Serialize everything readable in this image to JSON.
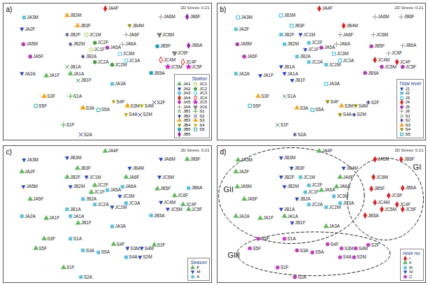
{
  "chart_data": [
    {
      "type": "scatter",
      "title": "a)",
      "subtitle": "2D Stress: 0.21",
      "legend_title": "Station",
      "legend": "lower right",
      "tick_labels": false,
      "xlim": [
        0,
        100
      ],
      "ylim": [
        0,
        100
      ],
      "series": [
        {
          "name": "JA1",
          "color": "#5cb85c",
          "marker": "triangle"
        },
        {
          "name": "JA2",
          "color": "#1f3fbf",
          "marker": "triangle-down"
        },
        {
          "name": "JA3",
          "color": "#5bc0de",
          "marker": "square"
        },
        {
          "name": "JA4",
          "color": "#e31a1c",
          "marker": "diamond"
        },
        {
          "name": "JA5",
          "color": "#b03cb0",
          "marker": "circle"
        },
        {
          "name": "JA6",
          "color": "#999999",
          "marker": "plus"
        },
        {
          "name": "JB1",
          "color": "#2e8b57",
          "marker": "times"
        },
        {
          "name": "JB2",
          "color": "#1a237e",
          "marker": "asterisk"
        },
        {
          "name": "JB3",
          "color": "#f5a623",
          "marker": "triangle"
        },
        {
          "name": "JB4",
          "color": "#8a8a00",
          "marker": "triangle-down"
        },
        {
          "name": "JB5",
          "color": "#17a2b8",
          "marker": "square"
        },
        {
          "name": "JB6",
          "color": "#8e24aa",
          "marker": "diamond"
        },
        {
          "name": "JC1",
          "color": "#9acd32",
          "marker": "open-circle"
        },
        {
          "name": "JC2",
          "color": "#43a047",
          "marker": "circle"
        },
        {
          "name": "JC3",
          "color": "#4fc3f7",
          "marker": "open-square"
        },
        {
          "name": "JC4",
          "color": "#e31a1c",
          "marker": "open-diamond"
        },
        {
          "name": "JC5",
          "color": "#c51bc5",
          "marker": "star"
        },
        {
          "name": "JC6",
          "color": "#777777",
          "marker": "wye"
        },
        {
          "name": "S1",
          "color": "#3cb043",
          "marker": "plus"
        },
        {
          "name": "S2",
          "color": "#283593",
          "marker": "times"
        },
        {
          "name": "S3",
          "color": "#ffa000",
          "marker": "triangle"
        },
        {
          "name": "S4",
          "color": "#b5b500",
          "marker": "triangle-down"
        },
        {
          "name": "S5",
          "color": "#26a69a",
          "marker": "open-square"
        }
      ],
      "labels": [
        "JA3M",
        "JB3M",
        "JA4F",
        "JB3F",
        "JA2F",
        "JB2F",
        "JC1M",
        "JB4M",
        "JA6F",
        "JA6M",
        "JB6F",
        "JC6M",
        "JA5M",
        "JC2F",
        "JB2M",
        "JA5A",
        "JC1F",
        "JA6A",
        "JB5F",
        "JB6A",
        "JA5F",
        "JB2A",
        "JC3A",
        "JC3M",
        "JC4F",
        "JC4M",
        "JC5M",
        "JC5F",
        "JC6F",
        "JB5A",
        "JC2M",
        "JA2A",
        "JA1F",
        "JA1A",
        "JB1F",
        "JB1A",
        "JC2A",
        "JA3A",
        "S3F",
        "S1A",
        "S5F",
        "S3A",
        "S5A",
        "S4F",
        "S3M",
        "S4M",
        "S2F",
        "S4A",
        "S2M",
        "S1F",
        "S2A"
      ],
      "x": [
        10,
        30.7,
        49,
        35.7,
        9,
        30.7,
        40,
        60.7,
        59,
        75.7,
        88.3,
        75,
        9.7,
        44,
        32.3,
        50,
        42.3,
        57.3,
        74,
        89,
        13,
        38.3,
        59,
        56,
        86.3,
        75.7,
        79,
        89,
        82.3,
        71,
        52.3,
        9,
        20.7,
        32.3,
        36,
        30.7,
        44,
        52.3,
        19.7,
        32.3,
        15.7,
        38.3,
        45.7,
        53,
        59.7,
        66.5,
        72.5,
        59,
        65.7,
        29,
        37.3
      ],
      "y": [
        89.5,
        91,
        96,
        83.5,
        81,
        77,
        77,
        83.5,
        77,
        90,
        90,
        77,
        70,
        71,
        70,
        67.5,
        66,
        70,
        68.5,
        69,
        61,
        61,
        58,
        63,
        57,
        58.5,
        53.5,
        53.5,
        63.5,
        49,
        55,
        48.5,
        47,
        48.5,
        43.5,
        53.5,
        57,
        41,
        32,
        32,
        25,
        23.5,
        22,
        28,
        25,
        25,
        27.5,
        18.5,
        18.5,
        11,
        4
      ],
      "groups": [
        "JA3",
        "JB3",
        "JA4",
        "JB3",
        "JA2",
        "JB2",
        "JC1",
        "JB4",
        "JA6",
        "JA6",
        "JB6",
        "JC6",
        "JA5",
        "JC2",
        "JB2",
        "JA5",
        "JC1",
        "JA6",
        "JB5",
        "JB6",
        "JA5",
        "JB2",
        "JC3",
        "JC3",
        "JC4",
        "JC4",
        "JC5",
        "JC5",
        "JC6",
        "JB5",
        "JC2",
        "JA2",
        "JA1",
        "JA1",
        "JB1",
        "JB1",
        "JC2",
        "JA3",
        "S3",
        "S1",
        "S5",
        "S3",
        "S5",
        "S4",
        "S3",
        "S4",
        "S2",
        "S4",
        "S2",
        "S1",
        "S2"
      ]
    },
    {
      "type": "scatter",
      "title": "b)",
      "subtitle": "2D Stress: 0.21",
      "legend_title": "Tidal level",
      "legend": "lower right",
      "tick_labels": false,
      "xlim": [
        0,
        100
      ],
      "ylim": [
        0,
        100
      ],
      "series": [
        {
          "name": "J1",
          "color": "#1f3fbf",
          "marker": "triangle-down"
        },
        {
          "name": "J2",
          "color": "#5bc0de",
          "marker": "square"
        },
        {
          "name": "J3",
          "color": "#29b6f6",
          "marker": "open-square"
        },
        {
          "name": "J4",
          "color": "#e31a1c",
          "marker": "diamond"
        },
        {
          "name": "J5",
          "color": "#b03cb0",
          "marker": "circle"
        },
        {
          "name": "J6",
          "color": "#999999",
          "marker": "plus"
        },
        {
          "name": "S1",
          "color": "#2e8b57",
          "marker": "times"
        },
        {
          "name": "S2",
          "color": "#1a237e",
          "marker": "asterisk"
        },
        {
          "name": "S3",
          "color": "#f5a623",
          "marker": "triangle"
        },
        {
          "name": "S4",
          "color": "#8a8a00",
          "marker": "triangle-down"
        },
        {
          "name": "S5",
          "color": "#17a2b8",
          "marker": "open-square"
        }
      ],
      "labels": [
        "JA3M",
        "JB3M",
        "JA4F",
        "JB3F",
        "JA2F",
        "JB2F",
        "JC1M",
        "JB4M",
        "JA6F",
        "JA6M",
        "JB6F",
        "JC6M",
        "JA5M",
        "JC2F",
        "JB2M",
        "JA5A",
        "JC1F",
        "JA6A",
        "JB5F",
        "JB6A",
        "JA5F",
        "JB2A",
        "JC3A",
        "JC3M",
        "JC4F",
        "JC4M",
        "JC5M",
        "JC5F",
        "JC6F",
        "JB5A",
        "JC2M",
        "JA2A",
        "JA1F",
        "JA1A",
        "JB1F",
        "JB1A",
        "JC2A",
        "JA3A",
        "S3F",
        "S1A",
        "S5F",
        "S3A",
        "S5A",
        "S4F",
        "S3M",
        "S4M",
        "S2F",
        "S4A",
        "S2M",
        "S1F",
        "S2A"
      ],
      "x": [
        10,
        30.7,
        49,
        35.7,
        9,
        30.7,
        40,
        60.7,
        59,
        75.7,
        88.3,
        75,
        9.7,
        44,
        32.3,
        50,
        42.3,
        57.3,
        74,
        89,
        13,
        38.3,
        59,
        56,
        86.3,
        75.7,
        79,
        89,
        82.3,
        71,
        52.3,
        9,
        20.7,
        32.3,
        36,
        30.7,
        44,
        52.3,
        19.7,
        32.3,
        15.7,
        38.3,
        45.7,
        53,
        59.7,
        66.5,
        72.5,
        59,
        65.7,
        29,
        37.3
      ],
      "y": [
        89.5,
        91,
        96,
        83.5,
        81,
        77,
        77,
        83.5,
        77,
        90,
        90,
        77,
        70,
        71,
        70,
        67.5,
        66,
        70,
        68.5,
        69,
        61,
        61,
        58,
        63,
        57,
        58.5,
        53.5,
        53.5,
        63.5,
        49,
        55,
        48.5,
        47,
        48.5,
        43.5,
        53.5,
        57,
        41,
        32,
        32,
        25,
        23.5,
        22,
        28,
        25,
        25,
        27.5,
        18.5,
        18.5,
        11,
        4
      ],
      "groups": [
        "J3",
        "J3",
        "J4",
        "J3",
        "J2",
        "J2",
        "J1",
        "J4",
        "J6",
        "J6",
        "J6",
        "J6",
        "J5",
        "J2",
        "J2",
        "J5",
        "J1",
        "J6",
        "J5",
        "J6",
        "J5",
        "J2",
        "J3",
        "J3",
        "J4",
        "J4",
        "J5",
        "J5",
        "J6",
        "J5",
        "J2",
        "J2",
        "J1",
        "J1",
        "J1",
        "J1",
        "J2",
        "J3",
        "S3",
        "S1",
        "S5",
        "S3",
        "S5",
        "S4",
        "S3",
        "S4",
        "S2",
        "S4",
        "S2",
        "S1",
        "S2"
      ]
    },
    {
      "type": "scatter",
      "title": "c)",
      "subtitle": "2D Stress: 0.21",
      "legend_title": "Season",
      "legend": "lower right",
      "tick_labels": false,
      "xlim": [
        0,
        100
      ],
      "ylim": [
        0,
        100
      ],
      "series": [
        {
          "name": "F",
          "color": "#5cb85c",
          "marker": "triangle"
        },
        {
          "name": "M",
          "color": "#1f3fbf",
          "marker": "triangle-down"
        },
        {
          "name": "A",
          "color": "#5bc0de",
          "marker": "square"
        }
      ],
      "labels": [
        "JA3M",
        "JB3M",
        "JA4F",
        "JB3F",
        "JA2F",
        "JB2F",
        "JC1M",
        "JB4M",
        "JA6F",
        "JA6M",
        "JB6F",
        "JC6M",
        "JA5M",
        "JC2F",
        "JB2M",
        "JA5A",
        "JC1F",
        "JA6A",
        "JB5F",
        "JB6A",
        "JA5F",
        "JB2A",
        "JC3A",
        "JC3M",
        "JC4F",
        "JC4M",
        "JC5M",
        "JC5F",
        "JC6F",
        "JB5A",
        "JC2M",
        "JA2A",
        "JA1F",
        "JA1A",
        "JB1F",
        "JB1A",
        "JC2A",
        "JA3A",
        "S3F",
        "S1A",
        "S5F",
        "S3A",
        "S5A",
        "S4F",
        "S3M",
        "S4M",
        "S2F",
        "S4A",
        "S2M",
        "S1F",
        "S2A"
      ],
      "x": [
        10,
        30.7,
        49,
        35.7,
        9,
        30.7,
        40,
        60.7,
        59,
        75.7,
        88.3,
        75,
        9.7,
        44,
        32.3,
        50,
        42.3,
        57.3,
        74,
        89,
        13,
        38.3,
        59,
        56,
        86.3,
        75.7,
        79,
        89,
        82.3,
        71,
        52.3,
        9,
        20.7,
        32.3,
        36,
        30.7,
        44,
        52.3,
        19.7,
        32.3,
        15.7,
        38.3,
        45.7,
        53,
        59.7,
        66.5,
        72.5,
        59,
        65.7,
        29,
        37.3
      ],
      "y": [
        89.5,
        91,
        96,
        83.5,
        81,
        77,
        77,
        83.5,
        77,
        90,
        90,
        77,
        70,
        71,
        70,
        67.5,
        66,
        70,
        68.5,
        69,
        61,
        61,
        58,
        63,
        57,
        58.5,
        53.5,
        53.5,
        63.5,
        49,
        55,
        48.5,
        47,
        48.5,
        43.5,
        53.5,
        57,
        41,
        32,
        32,
        25,
        23.5,
        22,
        28,
        25,
        25,
        27.5,
        18.5,
        18.5,
        11,
        4
      ],
      "groups": [
        "M",
        "M",
        "F",
        "F",
        "F",
        "F",
        "M",
        "M",
        "F",
        "M",
        "F",
        "M",
        "M",
        "F",
        "M",
        "A",
        "F",
        "A",
        "F",
        "A",
        "F",
        "A",
        "A",
        "M",
        "F",
        "M",
        "M",
        "F",
        "F",
        "A",
        "M",
        "A",
        "F",
        "A",
        "F",
        "A",
        "A",
        "A",
        "F",
        "A",
        "F",
        "A",
        "A",
        "F",
        "M",
        "M",
        "F",
        "A",
        "M",
        "F",
        "A"
      ]
    },
    {
      "type": "scatter",
      "title": "d)",
      "subtitle": "2D Stress: 0.21",
      "legend_title": "Hole no.",
      "legend": "lower right",
      "tick_labels": false,
      "xlim": [
        0,
        100
      ],
      "ylim": [
        0,
        100
      ],
      "series": [
        {
          "name": "I",
          "color": "#e31a1c",
          "marker": "diamond"
        },
        {
          "name": "II",
          "color": "#5cb85c",
          "marker": "triangle"
        },
        {
          "name": "III",
          "color": "#5bc0de",
          "marker": "square"
        },
        {
          "name": "IV",
          "color": "#1f3fbf",
          "marker": "triangle-down"
        },
        {
          "name": "C",
          "color": "#c040c0",
          "marker": "circle"
        }
      ],
      "labels": [
        "JA3M",
        "JB3M",
        "JA4F",
        "JB3F",
        "JA2F",
        "JB2F",
        "JC1M",
        "JB4M",
        "JA6F",
        "JA6M",
        "JB6F",
        "JC6M",
        "JA5M",
        "JC2F",
        "JB2M",
        "JA5A",
        "JC1F",
        "JA6A",
        "JB5F",
        "JB6A",
        "JA5F",
        "JB2A",
        "JC3A",
        "JC3M",
        "JC4F",
        "JC4M",
        "JC5M",
        "JC5F",
        "JC6F",
        "JB5A",
        "JC2M",
        "JA2A",
        "JA1F",
        "JA1A",
        "JB1F",
        "JB1A",
        "JC2A",
        "JA3A",
        "S3F",
        "S1A",
        "S5F",
        "S3A",
        "S5A",
        "S4F",
        "S3M",
        "S4M",
        "S2F",
        "S4A",
        "S2M",
        "S1F",
        "S2A"
      ],
      "x": [
        10,
        30.7,
        49,
        35.7,
        9,
        30.7,
        40,
        60.7,
        59,
        75.7,
        88.3,
        75,
        9.7,
        44,
        32.3,
        50,
        42.3,
        57.3,
        74,
        89,
        13,
        38.3,
        59,
        56,
        86.3,
        75.7,
        79,
        89,
        82.3,
        71,
        52.3,
        9,
        20.7,
        32.3,
        36,
        30.7,
        44,
        52.3,
        19.7,
        32.3,
        15.7,
        38.3,
        45.7,
        53,
        59.7,
        66.5,
        72.5,
        59,
        65.7,
        29,
        37.3
      ],
      "y": [
        89.5,
        91,
        96,
        83.5,
        81,
        77,
        77,
        83.5,
        77,
        90,
        90,
        77,
        70,
        71,
        70,
        67.5,
        66,
        70,
        68.5,
        69,
        61,
        61,
        58,
        63,
        57,
        58.5,
        53.5,
        53.5,
        63.5,
        49,
        55,
        48.5,
        47,
        48.5,
        43.5,
        53.5,
        57,
        41,
        32,
        32,
        25,
        23.5,
        22,
        28,
        25,
        25,
        27.5,
        18.5,
        18.5,
        11,
        4
      ],
      "groups": [
        "II",
        "IV",
        "II",
        "IV",
        "II",
        "IV",
        "III",
        "IV",
        "II",
        "I",
        "I",
        "I",
        "II",
        "III",
        "IV",
        "II",
        "III",
        "II",
        "I",
        "I",
        "II",
        "IV",
        "III",
        "III",
        "I",
        "I",
        "I",
        "I",
        "I",
        "I",
        "III",
        "II",
        "II",
        "II",
        "IV",
        "IV",
        "III",
        "II",
        "C",
        "C",
        "C",
        "C",
        "C",
        "C",
        "C",
        "C",
        "C",
        "C",
        "C",
        "C",
        "C"
      ],
      "clusters": [
        {
          "label": "GI",
          "cx": 80.7,
          "cy": 61,
          "rx": 18.3,
          "ry": 30,
          "label_x": 94,
          "label_y": 84
        },
        {
          "label": "GII",
          "cx": 35.7,
          "cy": 63.5,
          "rx": 35,
          "ry": 35,
          "label_x": 3,
          "label_y": 68
        },
        {
          "label": "GIII",
          "cx": 46.3,
          "cy": 21,
          "rx": 36.7,
          "ry": 16,
          "label_x": 5,
          "label_y": 20
        }
      ]
    }
  ]
}
